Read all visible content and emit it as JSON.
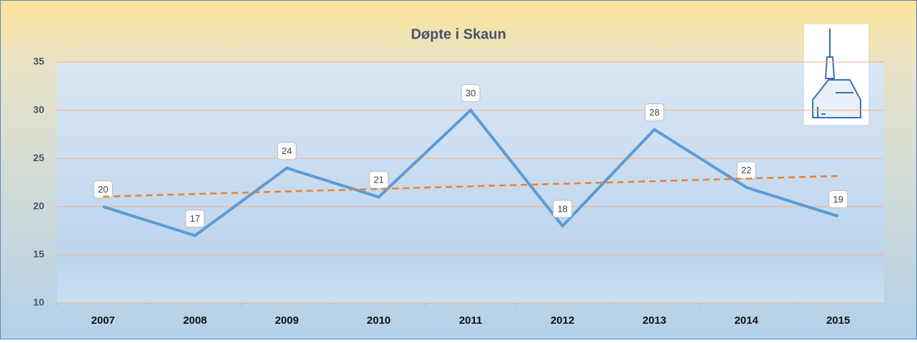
{
  "chart_data": {
    "type": "line",
    "title": "Døpte i Skaun",
    "categories": [
      "2007",
      "2008",
      "2009",
      "2010",
      "2011",
      "2012",
      "2013",
      "2014",
      "2015"
    ],
    "series": [
      {
        "color": "#5b9bd5",
        "values": [
          20,
          17,
          24,
          21,
          30,
          18,
          28,
          22,
          19
        ],
        "data_labels": true
      },
      {
        "color": "#ed7d31",
        "values": [
          21.04,
          21.31,
          21.58,
          21.84,
          22.11,
          22.38,
          22.64,
          22.91,
          23.18
        ],
        "dashed": true
      }
    ],
    "ylim": [
      10,
      35
    ],
    "yticks": [
      10,
      15,
      20,
      25,
      30,
      35
    ],
    "grid": true
  }
}
